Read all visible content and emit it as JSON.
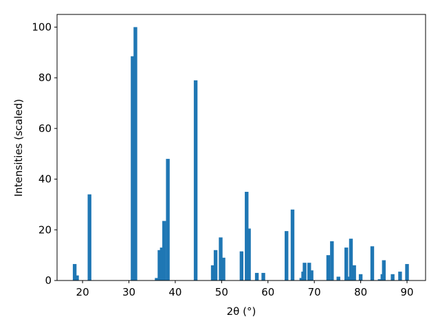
{
  "chart_data": {
    "type": "bar",
    "xlabel": "2θ (°)",
    "ylabel": "Intensities (scaled)",
    "x": [
      18.3,
      18.8,
      21.5,
      30.8,
      31.4,
      36.0,
      36.6,
      37.1,
      37.6,
      38.4,
      44.4,
      48.1,
      48.7,
      49.8,
      50.4,
      54.3,
      55.4,
      55.9,
      57.6,
      59.0,
      64.0,
      65.3,
      67.2,
      67.6,
      67.9,
      68.9,
      69.4,
      73.0,
      73.8,
      75.2,
      76.9,
      77.4,
      77.9,
      78.6,
      80.0,
      82.5,
      84.1,
      84.7,
      85.0,
      86.9,
      88.5,
      90.0
    ],
    "values": [
      6.5,
      2,
      34,
      88.5,
      100,
      1,
      12,
      13,
      23.5,
      48,
      79,
      6,
      12,
      17,
      9,
      11.5,
      35,
      20.5,
      3,
      3,
      19.5,
      28,
      1,
      3.5,
      7,
      7,
      4,
      10,
      15.5,
      1.5,
      13,
      1.5,
      16.5,
      6,
      2.5,
      13.5,
      0.5,
      2.5,
      8,
      2.5,
      3.5,
      6.5
    ],
    "color": "#1f77b4",
    "xlim": [
      14.5,
      94
    ],
    "ylim": [
      0,
      105
    ],
    "xticks": [
      20,
      30,
      40,
      50,
      60,
      70,
      80,
      90
    ],
    "yticks": [
      0,
      20,
      40,
      60,
      80,
      100
    ]
  }
}
